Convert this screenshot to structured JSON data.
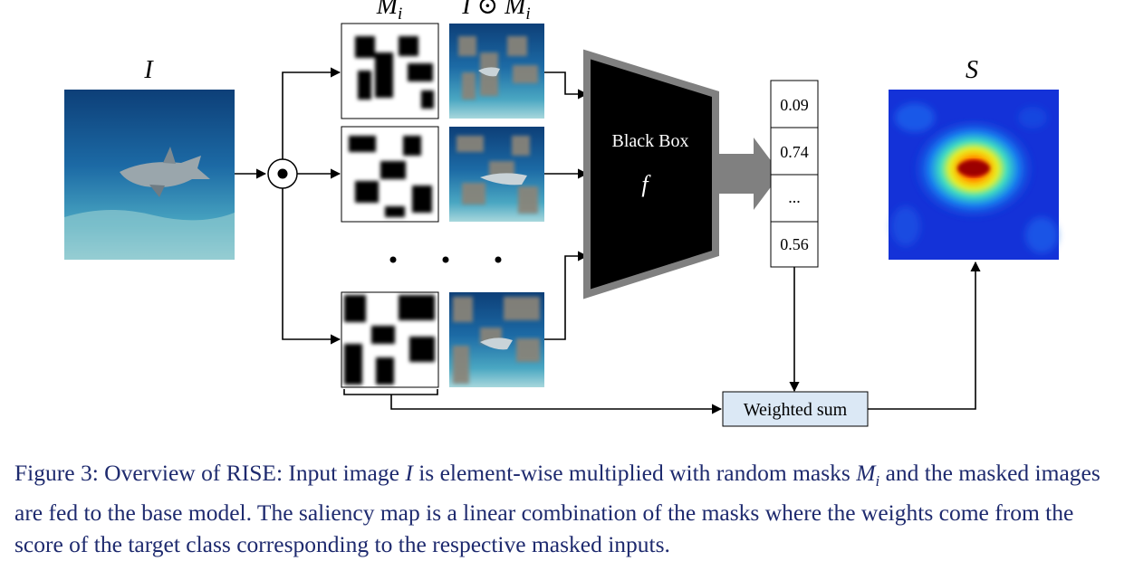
{
  "diagram": {
    "input_label": "I",
    "mask_label": "M",
    "mask_sub": "i",
    "masked_label_prefix": "I ⊙ ",
    "masked_label_var": "M",
    "masked_label_sub": "i",
    "blackbox_label": "Black Box",
    "blackbox_fn": "f",
    "scores": [
      "0.09",
      "0.74",
      "...",
      "0.56"
    ],
    "weighted_sum_label": "Weighted sum",
    "saliency_label": "S",
    "colors": {
      "ocean": "#1c6aa5",
      "mask_gray": "#8a8478",
      "blackbox": "#000000",
      "blackbox_border": "#808080",
      "arrow_gray": "#808080",
      "weighted_sum_fill": "#dbe8f5",
      "saliency_bg": "#1432d8",
      "caption": "#1e2a6e"
    },
    "icons": [
      "elementwise-multiply-icon",
      "arrow-icon",
      "ellipsis-dots"
    ]
  },
  "caption": {
    "fig": "Figure 3:",
    "p1": " Overview of RISE: Input image ",
    "v1": "I",
    "p2": " is element-wise multiplied with random masks ",
    "v2": "M",
    "v2sub": "i",
    "p3": " and the masked images are fed to the base model. The saliency map is a linear combination of the masks where the weights come from the score of the target class corresponding to the respective masked inputs."
  }
}
